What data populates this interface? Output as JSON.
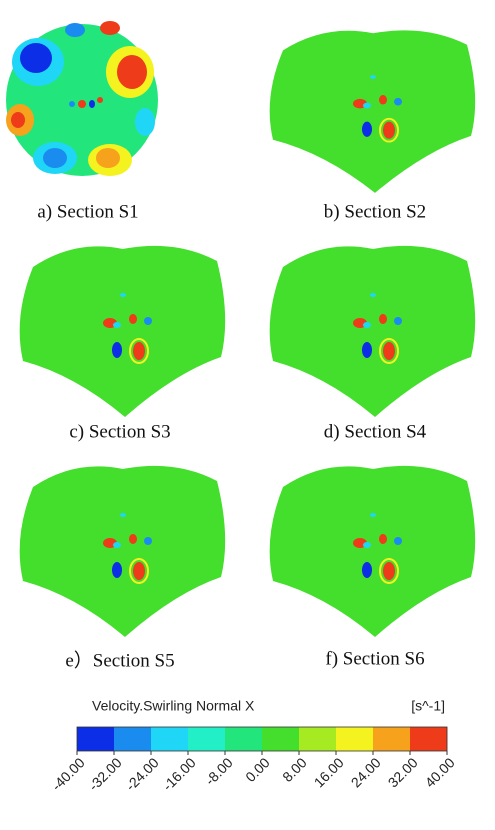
{
  "panels": [
    {
      "caption": "a) Section S1"
    },
    {
      "caption": "b) Section S2"
    },
    {
      "caption": "c) Section S3"
    },
    {
      "caption": "d) Section S4"
    },
    {
      "caption": "e）Section S5"
    },
    {
      "caption": "f) Section S6"
    }
  ],
  "colorbar": {
    "title": "Velocity.Swirling Normal X",
    "unit": "[s^-1]",
    "ticks": [
      {
        "value": -40,
        "label": "-40.00"
      },
      {
        "value": -32,
        "label": "-32.00"
      },
      {
        "value": -24,
        "label": "-24.00"
      },
      {
        "value": -16,
        "label": "-16.00"
      },
      {
        "value": -8,
        "label": "-8.00"
      },
      {
        "value": 0,
        "label": "0.00"
      },
      {
        "value": 8,
        "label": "8.00"
      },
      {
        "value": 16,
        "label": "16.00"
      },
      {
        "value": 24,
        "label": "24.00"
      },
      {
        "value": 32,
        "label": "32.00"
      },
      {
        "value": 40,
        "label": "40.00"
      }
    ],
    "colors": [
      "#0c2ee6",
      "#1a8cf0",
      "#20d6f6",
      "#22efc6",
      "#22e67c",
      "#44de2c",
      "#a6ea22",
      "#f4f31f",
      "#f6a21c",
      "#ee3b1a"
    ]
  }
}
